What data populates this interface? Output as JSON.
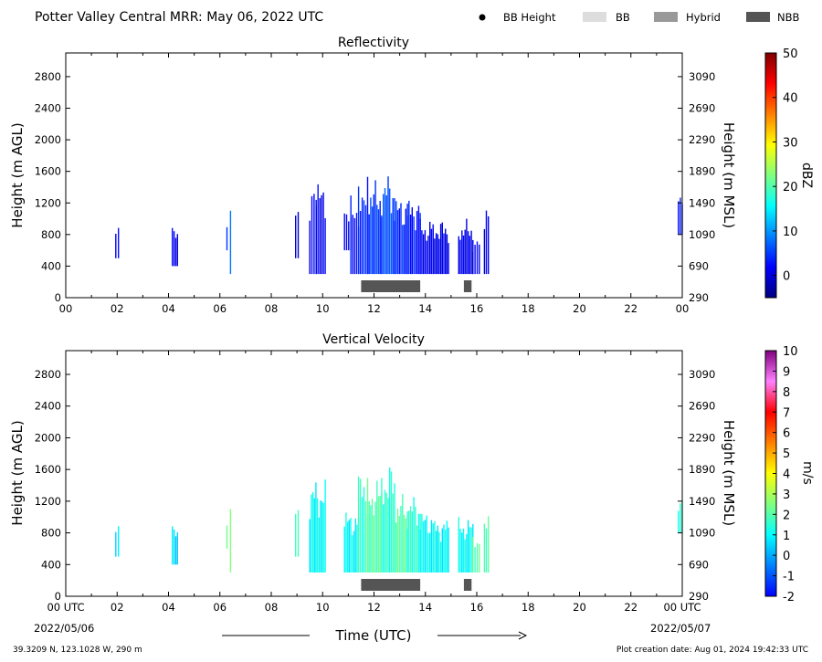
{
  "header": {
    "title": "Potter Valley Central MRR:  May 06, 2022 UTC",
    "legend": [
      {
        "label": "BB Height",
        "kind": "dot",
        "color": "#000000"
      },
      {
        "label": "BB",
        "kind": "swatch",
        "color": "#dddddd"
      },
      {
        "label": "Hybrid",
        "kind": "swatch",
        "color": "#999999"
      },
      {
        "label": "NBB",
        "kind": "swatch",
        "color": "#555555"
      }
    ]
  },
  "footer": {
    "location": "39.3209 N, 123.1028 W, 290 m",
    "creation": "Plot creation date: Aug 01, 2024 19:42:33 UTC",
    "xlabel": "Time (UTC)",
    "start_date": "2022/05/06",
    "end_date": "2022/05/07"
  },
  "chart_data": [
    {
      "type": "heatmap",
      "title": "Reflectivity",
      "ylabel": "Height (m AGL)",
      "ylabel_right": "Height (m MSL)",
      "xlim": [
        0,
        24
      ],
      "ylim": [
        0,
        3100
      ],
      "y_ticks": [
        0,
        400,
        800,
        1200,
        1600,
        2000,
        2400,
        2800
      ],
      "y_ticks_right": [
        "290",
        "690",
        "1090",
        "1490",
        "1890",
        "2290",
        "2690",
        "3090"
      ],
      "x_ticks": [
        "00",
        "02",
        "04",
        "06",
        "08",
        "10",
        "12",
        "14",
        "16",
        "18",
        "20",
        "22",
        "00"
      ],
      "colorbar": {
        "label": "dBZ",
        "min": -5,
        "max": 50,
        "ticks": [
          0,
          10,
          20,
          30,
          40,
          50
        ]
      },
      "echoes": [
        {
          "start": 1.95,
          "end": 2.05,
          "bottom": 500,
          "top": 900,
          "value": 1
        },
        {
          "start": 4.15,
          "end": 4.35,
          "bottom": 400,
          "top": 900,
          "value": 1
        },
        {
          "start": 6.25,
          "end": 6.3,
          "bottom": 600,
          "top": 900,
          "value": 3
        },
        {
          "start": 6.38,
          "end": 6.45,
          "bottom": 300,
          "top": 1300,
          "value": 8
        },
        {
          "start": 8.95,
          "end": 9.05,
          "bottom": 500,
          "top": 1400,
          "value": 0
        },
        {
          "start": 9.5,
          "end": 9.75,
          "bottom": 300,
          "top": 1500,
          "value": 1
        },
        {
          "start": 9.75,
          "end": 10.1,
          "bottom": 300,
          "top": 1500,
          "value": 1
        },
        {
          "start": 10.85,
          "end": 11.1,
          "bottom": 600,
          "top": 1100,
          "value": 1
        },
        {
          "start": 11.1,
          "end": 11.4,
          "bottom": 300,
          "top": 1300,
          "value": 2
        },
        {
          "start": 11.4,
          "end": 11.75,
          "bottom": 300,
          "top": 1600,
          "value": 4
        },
        {
          "start": 11.75,
          "end": 12.3,
          "bottom": 300,
          "top": 1500,
          "value": 5
        },
        {
          "start": 12.3,
          "end": 12.8,
          "bottom": 300,
          "top": 1600,
          "value": 6
        },
        {
          "start": 12.8,
          "end": 13.3,
          "bottom": 300,
          "top": 1300,
          "value": 4
        },
        {
          "start": 13.3,
          "end": 13.8,
          "bottom": 300,
          "top": 1300,
          "value": 3
        },
        {
          "start": 13.8,
          "end": 14.3,
          "bottom": 300,
          "top": 1000,
          "value": 1
        },
        {
          "start": 14.3,
          "end": 14.9,
          "bottom": 300,
          "top": 1000,
          "value": 1
        },
        {
          "start": 15.3,
          "end": 15.85,
          "bottom": 300,
          "top": 1000,
          "value": 1
        },
        {
          "start": 15.85,
          "end": 16.1,
          "bottom": 300,
          "top": 800,
          "value": 1
        },
        {
          "start": 16.3,
          "end": 16.45,
          "bottom": 300,
          "top": 1200,
          "value": 0
        },
        {
          "start": 23.85,
          "end": 24.0,
          "bottom": 800,
          "top": 1300,
          "value": 2
        }
      ],
      "bb_bars": [
        {
          "start": 11.5,
          "end": 13.8,
          "category": "NBB"
        },
        {
          "start": 15.5,
          "end": 15.8,
          "category": "NBB"
        }
      ]
    },
    {
      "type": "heatmap",
      "title": "Vertical Velocity",
      "ylabel": "Height (m AGL)",
      "ylabel_right": "Height (m MSL)",
      "xlim": [
        0,
        24
      ],
      "ylim": [
        0,
        3100
      ],
      "y_ticks": [
        0,
        400,
        800,
        1200,
        1600,
        2000,
        2400,
        2800
      ],
      "y_ticks_right": [
        "290",
        "690",
        "1090",
        "1490",
        "1890",
        "2290",
        "2690",
        "3090"
      ],
      "x_ticks": [
        "00 UTC",
        "02",
        "04",
        "06",
        "08",
        "10",
        "12",
        "14",
        "16",
        "18",
        "20",
        "22",
        "00 UTC"
      ],
      "colorbar": {
        "label": "m/s",
        "min": -2,
        "max": 10,
        "ticks": [
          -2,
          -1,
          0,
          1,
          2,
          3,
          4,
          5,
          6,
          7,
          8,
          9,
          10
        ]
      },
      "echoes": [
        {
          "start": 1.95,
          "end": 2.05,
          "bottom": 500,
          "top": 900,
          "value": 0.5
        },
        {
          "start": 4.15,
          "end": 4.35,
          "bottom": 400,
          "top": 900,
          "value": 0.5
        },
        {
          "start": 6.25,
          "end": 6.3,
          "bottom": 600,
          "top": 900,
          "value": 2
        },
        {
          "start": 6.38,
          "end": 6.45,
          "bottom": 300,
          "top": 1300,
          "value": 2.5
        },
        {
          "start": 8.95,
          "end": 9.05,
          "bottom": 500,
          "top": 1400,
          "value": 2
        },
        {
          "start": 9.5,
          "end": 10.1,
          "bottom": 300,
          "top": 1500,
          "value": 1
        },
        {
          "start": 10.85,
          "end": 11.4,
          "bottom": 300,
          "top": 1100,
          "value": 1
        },
        {
          "start": 11.4,
          "end": 11.75,
          "bottom": 300,
          "top": 1600,
          "value": 1.5
        },
        {
          "start": 11.75,
          "end": 12.3,
          "bottom": 300,
          "top": 1500,
          "value": 2
        },
        {
          "start": 12.3,
          "end": 12.8,
          "bottom": 300,
          "top": 1700,
          "value": 1.5
        },
        {
          "start": 12.8,
          "end": 13.3,
          "bottom": 300,
          "top": 1300,
          "value": 2
        },
        {
          "start": 13.3,
          "end": 13.8,
          "bottom": 300,
          "top": 1300,
          "value": 1.5
        },
        {
          "start": 13.8,
          "end": 14.3,
          "bottom": 300,
          "top": 1100,
          "value": 1
        },
        {
          "start": 14.3,
          "end": 14.9,
          "bottom": 300,
          "top": 1000,
          "value": 1
        },
        {
          "start": 15.3,
          "end": 15.85,
          "bottom": 300,
          "top": 1000,
          "value": 1
        },
        {
          "start": 15.85,
          "end": 16.1,
          "bottom": 300,
          "top": 800,
          "value": 2
        },
        {
          "start": 16.3,
          "end": 16.45,
          "bottom": 300,
          "top": 1200,
          "value": 2
        },
        {
          "start": 23.85,
          "end": 24.0,
          "bottom": 800,
          "top": 1300,
          "value": 1.5
        }
      ],
      "bb_bars": [
        {
          "start": 11.5,
          "end": 13.8,
          "category": "NBB"
        },
        {
          "start": 15.5,
          "end": 15.8,
          "category": "NBB"
        }
      ]
    }
  ],
  "colormaps": {
    "reflectivity": [
      "#00007f",
      "#0000ff",
      "#0080ff",
      "#00ffff",
      "#80ff80",
      "#ffff00",
      "#ff8000",
      "#ff0000",
      "#7f0000"
    ],
    "velocity": [
      "#0000ff",
      "#0080ff",
      "#00ffff",
      "#80ff80",
      "#ffff00",
      "#ff8000",
      "#ff0000",
      "#ff80ff",
      "#800080"
    ]
  }
}
